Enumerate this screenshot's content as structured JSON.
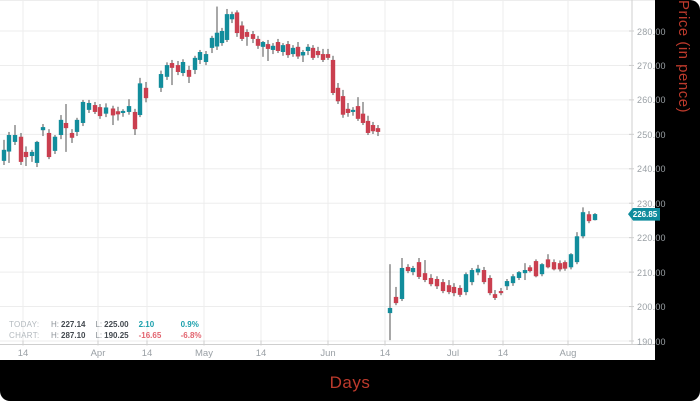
{
  "labels": {
    "y_axis": "Price (in pence)",
    "x_axis": "Days"
  },
  "price_badge": {
    "value": "226.85"
  },
  "legend": {
    "rows": [
      {
        "name": "TODAY:",
        "h_label": "H:",
        "high": "227.14",
        "l_label": "L:",
        "low": "225.00",
        "change": "2.10",
        "percent": "0.9%",
        "direction": "positive"
      },
      {
        "name": "CHART:",
        "h_label": "H:",
        "high": "287.10",
        "l_label": "L:",
        "low": "190.25",
        "change": "-16.65",
        "percent": "-6.8%",
        "direction": "negative"
      }
    ]
  },
  "colors": {
    "up_candle": "#128d9c",
    "down_candle": "#ca3f4f",
    "wick": "#6e6e6e",
    "grid": "#ededed",
    "axis_line": "#cfcfcf",
    "tick_text": "#9aa0a5",
    "badge_bg": "#0f8c9d",
    "badge_text": "#ffffff",
    "axis_title": "#bd3a2c",
    "positive_text": "#1ba0ac",
    "negative_text": "#e2636e",
    "panel_bg": "#000000",
    "chart_bg": "#ffffff"
  },
  "chart_data": {
    "type": "candlestick",
    "title": "",
    "xlabel": "Days",
    "ylabel": "Price (in pence)",
    "y_range": [
      190,
      290
    ],
    "y_tick_step": 10,
    "y_tick_labels": [
      "280.00",
      "270.00",
      "260.00",
      "250.00",
      "240.00",
      "230.00",
      "220.00",
      "210.00",
      "200.00",
      "190.00"
    ],
    "x_tick_labels": [
      "14",
      "Apr",
      "14",
      "May",
      "14",
      "Jun",
      "14",
      "Jul",
      "14",
      "Aug"
    ],
    "x_ticks": [
      {
        "label": "14",
        "x": 23
      },
      {
        "label": "Apr",
        "x": 98
      },
      {
        "label": "14",
        "x": 147
      },
      {
        "label": "May",
        "x": 204
      },
      {
        "label": "14",
        "x": 261
      },
      {
        "label": "Jun",
        "x": 328
      },
      {
        "label": "14",
        "x": 385
      },
      {
        "label": "Jul",
        "x": 453
      },
      {
        "label": "14",
        "x": 503
      },
      {
        "label": "Aug",
        "x": 568
      }
    ],
    "grid": true,
    "last_price": 226.85,
    "today_high": 227.14,
    "today_low": 225.0,
    "today_change": 2.1,
    "today_change_pct": "0.9%",
    "chart_high": 287.1,
    "chart_low": 190.25,
    "chart_change": -16.65,
    "chart_change_pct": "-6.8%",
    "columns": [
      "x_px",
      "open",
      "high",
      "low",
      "close"
    ],
    "candles": [
      [
        4,
        242.3,
        248.4,
        241.1,
        245.5
      ],
      [
        9,
        245.0,
        250.7,
        241.7,
        249.8
      ],
      [
        15,
        247.8,
        252.7,
        246.9,
        249.8
      ],
      [
        21,
        249.3,
        250.4,
        241.1,
        242.0
      ],
      [
        26,
        244.9,
        246.5,
        240.8,
        243.4
      ],
      [
        32,
        243.7,
        245.5,
        242.0,
        244.9
      ],
      [
        37,
        241.7,
        248.1,
        240.5,
        247.8
      ],
      [
        43,
        251.2,
        253.0,
        249.5,
        252.1
      ],
      [
        49,
        250.4,
        251.5,
        242.8,
        243.4
      ],
      [
        55,
        245.2,
        249.8,
        244.3,
        249.3
      ],
      [
        61,
        249.8,
        255.6,
        248.6,
        254.2
      ],
      [
        66,
        253.3,
        258.8,
        244.9,
        251.8
      ],
      [
        72,
        250.4,
        251.5,
        247.5,
        249.0
      ],
      [
        77,
        250.7,
        254.8,
        249.5,
        254.2
      ],
      [
        83,
        253.3,
        260.0,
        252.4,
        259.4
      ],
      [
        89,
        257.1,
        260.0,
        256.2,
        259.1
      ],
      [
        95,
        258.5,
        259.4,
        255.9,
        256.5
      ],
      [
        100,
        257.9,
        258.8,
        254.5,
        255.3
      ],
      [
        106,
        256.0,
        259.0,
        255.0,
        257.8
      ],
      [
        113,
        257.5,
        258.3,
        252.7,
        255.5
      ],
      [
        118,
        256.7,
        258.0,
        254.0,
        255.8
      ],
      [
        123,
        256.2,
        257.3,
        255.1,
        256.8
      ],
      [
        129,
        256.5,
        260.2,
        255.7,
        258.2
      ],
      [
        135,
        256.5,
        257.4,
        249.8,
        251.5
      ],
      [
        140,
        255.6,
        266.4,
        255.0,
        264.8
      ],
      [
        146,
        263.5,
        265.2,
        259.3,
        260.5
      ],
      [
        161,
        263.5,
        268.5,
        262.3,
        267.5
      ],
      [
        167,
        266.7,
        270.9,
        265.8,
        270.1
      ],
      [
        172,
        270.7,
        271.6,
        264.3,
        269.3
      ],
      [
        178,
        270.1,
        271.3,
        267.2,
        268.1
      ],
      [
        183,
        267.8,
        271.8,
        266.9,
        271.0
      ],
      [
        189,
        268.7,
        269.9,
        264.9,
        266.7
      ],
      [
        195,
        268.7,
        272.8,
        267.5,
        272.2
      ],
      [
        200,
        271.6,
        274.5,
        270.4,
        273.9
      ],
      [
        206,
        271.0,
        274.2,
        270.1,
        273.3
      ],
      [
        212,
        275.1,
        278.6,
        273.6,
        278.0
      ],
      [
        217,
        275.5,
        287.1,
        274.5,
        279.5
      ],
      [
        222,
        276.5,
        280.9,
        275.7,
        280.0
      ],
      [
        227,
        277.4,
        286.4,
        276.8,
        284.9
      ],
      [
        232,
        283.4,
        285.6,
        282.3,
        284.9
      ],
      [
        237,
        285.4,
        286.0,
        278.3,
        279.4
      ],
      [
        242,
        281.6,
        282.8,
        277.1,
        277.7
      ],
      [
        247,
        279.7,
        280.5,
        275.7,
        278.3
      ],
      [
        253,
        279.1,
        280.0,
        276.5,
        277.7
      ],
      [
        258,
        277.7,
        278.6,
        274.8,
        275.7
      ],
      [
        263,
        275.4,
        277.1,
        272.5,
        276.8
      ],
      [
        268,
        276.2,
        277.4,
        271.3,
        274.8
      ],
      [
        273,
        274.5,
        276.5,
        273.3,
        275.7
      ],
      [
        278,
        276.8,
        277.7,
        273.6,
        274.2
      ],
      [
        283,
        273.9,
        276.5,
        272.8,
        275.9
      ],
      [
        288,
        276.2,
        277.1,
        272.2,
        273.0
      ],
      [
        293,
        273.3,
        275.9,
        272.5,
        275.1
      ],
      [
        298,
        275.4,
        276.8,
        271.9,
        272.6
      ],
      [
        303,
        272.9,
        274.5,
        271.0,
        273.9
      ],
      [
        308,
        274.2,
        276.2,
        273.0,
        275.4
      ],
      [
        313,
        275.1,
        275.9,
        271.6,
        272.2
      ],
      [
        318,
        274.2,
        275.4,
        272.2,
        273.0
      ],
      [
        323,
        273.3,
        274.8,
        271.0,
        271.6
      ],
      [
        328,
        273.3,
        274.8,
        271.6,
        272.2
      ],
      [
        333,
        271.6,
        272.8,
        261.4,
        262.0
      ],
      [
        338,
        263.5,
        264.9,
        258.8,
        259.6
      ],
      [
        343,
        261.1,
        262.9,
        254.8,
        255.7
      ],
      [
        348,
        257.4,
        259.1,
        255.1,
        256.2
      ],
      [
        353,
        256.5,
        257.9,
        255.4,
        257.1
      ],
      [
        358,
        258.2,
        260.8,
        253.9,
        254.5
      ],
      [
        363,
        256.0,
        259.4,
        252.7,
        253.3
      ],
      [
        368,
        253.9,
        255.4,
        249.8,
        250.4
      ],
      [
        373,
        252.7,
        253.6,
        250.1,
        250.9
      ],
      [
        378,
        251.8,
        252.7,
        249.5,
        250.7
      ],
      [
        390,
        198.1,
        212.3,
        190.25,
        199.6
      ],
      [
        396,
        202.8,
        205.7,
        200.4,
        201.0
      ],
      [
        402,
        202.2,
        214.1,
        201.6,
        211.2
      ],
      [
        408,
        211.5,
        212.3,
        209.7,
        210.3
      ],
      [
        413,
        210.0,
        211.8,
        209.1,
        211.2
      ],
      [
        419,
        212.9,
        214.1,
        208.0,
        208.6
      ],
      [
        425,
        209.7,
        213.5,
        207.1,
        207.7
      ],
      [
        431,
        208.3,
        209.4,
        205.9,
        206.5
      ],
      [
        437,
        208.0,
        208.8,
        205.1,
        205.9
      ],
      [
        443,
        207.1,
        208.0,
        203.9,
        204.5
      ],
      [
        449,
        206.2,
        207.7,
        203.6,
        204.2
      ],
      [
        454,
        205.7,
        206.8,
        203.0,
        203.9
      ],
      [
        460,
        205.4,
        206.2,
        202.8,
        203.4
      ],
      [
        466,
        204.2,
        209.9,
        203.3,
        209.4
      ],
      [
        472,
        207.1,
        211.2,
        206.2,
        210.6
      ],
      [
        478,
        209.9,
        212.1,
        209.1,
        211.0
      ],
      [
        484,
        210.6,
        211.5,
        206.5,
        207.1
      ],
      [
        490,
        208.3,
        209.1,
        203.3,
        203.9
      ],
      [
        495,
        203.6,
        204.8,
        201.9,
        202.5
      ],
      [
        501,
        204.5,
        205.4,
        203.3,
        203.9
      ],
      [
        507,
        205.9,
        208.0,
        204.8,
        207.4
      ],
      [
        513,
        206.8,
        209.4,
        206.0,
        208.8
      ],
      [
        519,
        208.3,
        210.3,
        207.7,
        210.0
      ],
      [
        525,
        209.7,
        212.6,
        207.7,
        210.6
      ],
      [
        530,
        211.4,
        212.0,
        209.9,
        210.3
      ],
      [
        536,
        213.2,
        213.7,
        208.5,
        208.8
      ],
      [
        542,
        209.4,
        212.6,
        208.8,
        212.3
      ],
      [
        548,
        213.7,
        215.2,
        211.1,
        211.4
      ],
      [
        554,
        212.9,
        213.7,
        210.5,
        210.8
      ],
      [
        560,
        212.6,
        213.4,
        210.2,
        210.8
      ],
      [
        565,
        212.9,
        213.4,
        210.4,
        211.0
      ],
      [
        571,
        211.4,
        215.5,
        210.8,
        215.2
      ],
      [
        577,
        212.9,
        221.6,
        212.3,
        220.4
      ],
      [
        583,
        220.4,
        228.8,
        219.8,
        227.4
      ],
      [
        589,
        226.8,
        227.7,
        224.2,
        224.8
      ],
      [
        595,
        225.1,
        227.14,
        225.0,
        226.85
      ]
    ]
  }
}
